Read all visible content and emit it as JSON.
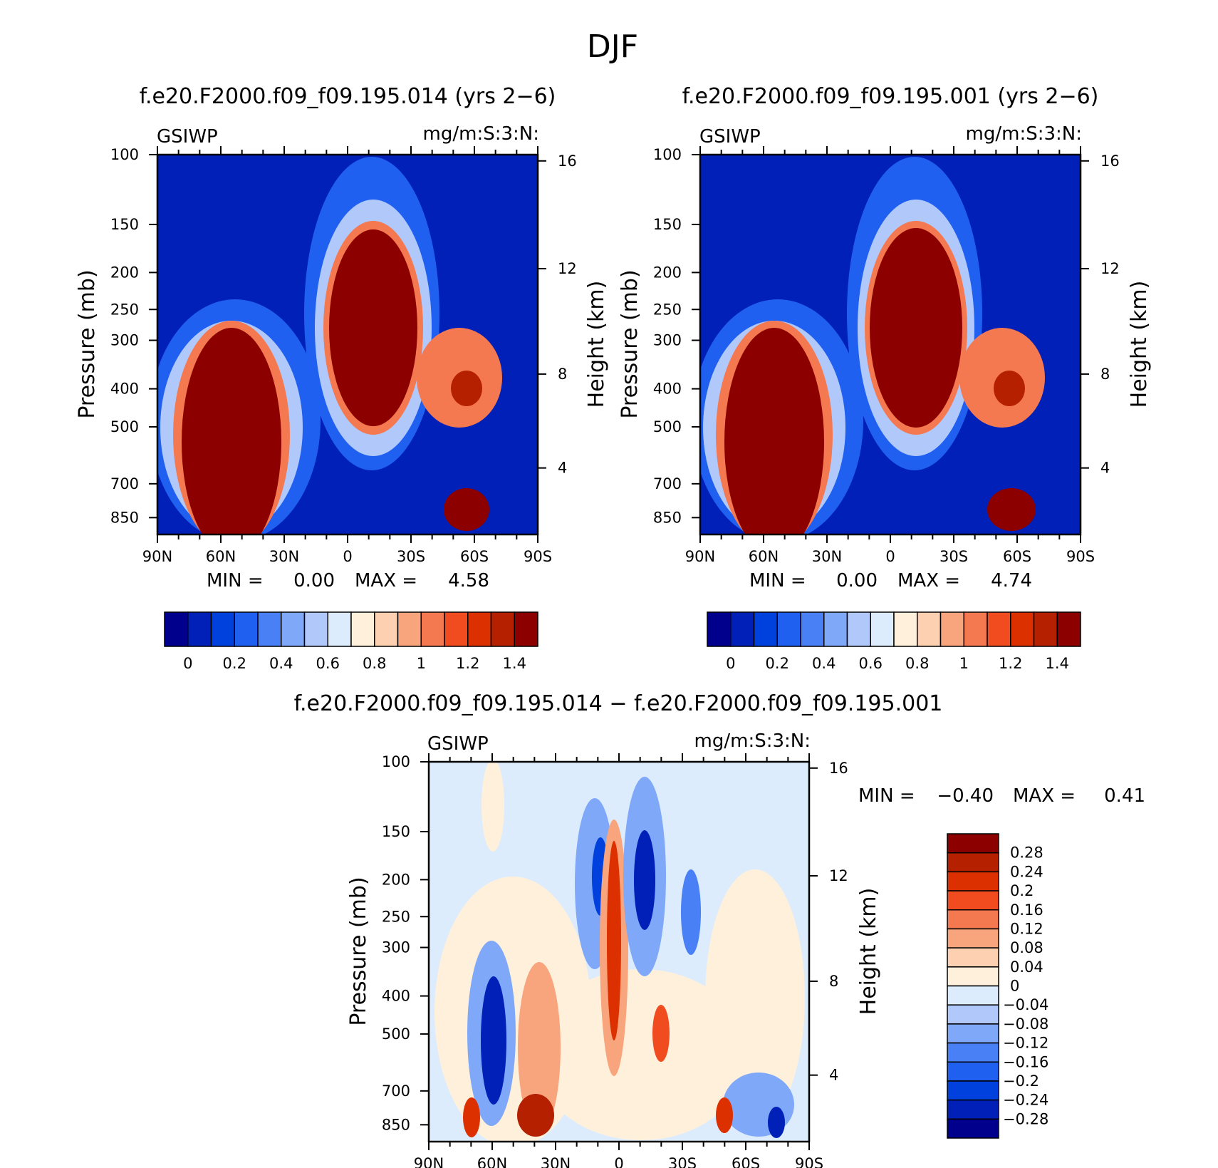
{
  "figure": {
    "title": "DJF"
  },
  "chart_data": [
    {
      "type": "heatmap",
      "id": "panel-left",
      "title": "f.e20.F2000.f09_f09.195.014 (yrs 2−6)",
      "left_string": "GSIWP",
      "right_string": "mg/m:S:3:N:",
      "xlabel": "",
      "ylabel": "Pressure (mb)",
      "y2label": "Height (km)",
      "x_ticks": [
        "90N",
        "60N",
        "30N",
        "0",
        "30S",
        "60S",
        "90S"
      ],
      "y_ticks": [
        "100",
        "150",
        "200",
        "250",
        "300",
        "400",
        "500",
        "700",
        "850"
      ],
      "y2_ticks": [
        "16",
        "12",
        "8",
        "4"
      ],
      "min_label": "MIN =",
      "min_value": "0.00",
      "max_label": "MAX =",
      "max_value": "4.58",
      "colorbar_labels": [
        "0",
        "0.2",
        "0.4",
        "0.6",
        "0.8",
        "1",
        "1.2",
        "1.4"
      ],
      "colors": [
        "#00008c",
        "#0020b8",
        "#0040dc",
        "#2060f0",
        "#4a80f5",
        "#80a8f8",
        "#b0c8fa",
        "#dcecfc",
        "#fff0dc",
        "#fcd0b0",
        "#f8a47c",
        "#f47850",
        "#f04c20",
        "#dc3000",
        "#b42000",
        "#8c0000"
      ]
    },
    {
      "type": "heatmap",
      "id": "panel-right",
      "title": "f.e20.F2000.f09_f09.195.001 (yrs 2−6)",
      "left_string": "GSIWP",
      "right_string": "mg/m:S:3:N:",
      "xlabel": "",
      "ylabel": "Pressure (mb)",
      "y2label": "Height (km)",
      "x_ticks": [
        "90N",
        "60N",
        "30N",
        "0",
        "30S",
        "60S",
        "90S"
      ],
      "y_ticks": [
        "100",
        "150",
        "200",
        "250",
        "300",
        "400",
        "500",
        "700",
        "850"
      ],
      "y2_ticks": [
        "16",
        "12",
        "8",
        "4"
      ],
      "min_label": "MIN =",
      "min_value": "0.00",
      "max_label": "MAX =",
      "max_value": "4.74",
      "colorbar_labels": [
        "0",
        "0.2",
        "0.4",
        "0.6",
        "0.8",
        "1",
        "1.2",
        "1.4"
      ],
      "colors": [
        "#00008c",
        "#0020b8",
        "#0040dc",
        "#2060f0",
        "#4a80f5",
        "#80a8f8",
        "#b0c8fa",
        "#dcecfc",
        "#fff0dc",
        "#fcd0b0",
        "#f8a47c",
        "#f47850",
        "#f04c20",
        "#dc3000",
        "#b42000",
        "#8c0000"
      ]
    },
    {
      "type": "heatmap",
      "id": "panel-diff",
      "title": "f.e20.F2000.f09_f09.195.014 − f.e20.F2000.f09_f09.195.001",
      "left_string": "GSIWP",
      "right_string": "mg/m:S:3:N:",
      "xlabel": "",
      "ylabel": "Pressure (mb)",
      "y2label": "Height (km)",
      "x_ticks": [
        "90N",
        "60N",
        "30N",
        "0",
        "30S",
        "60S",
        "90S"
      ],
      "y_ticks": [
        "100",
        "150",
        "200",
        "250",
        "300",
        "400",
        "500",
        "700",
        "850"
      ],
      "y2_ticks": [
        "16",
        "12",
        "8",
        "4"
      ],
      "min_label": "MIN =",
      "min_value": "−0.40",
      "max_label": "MAX =",
      "max_value": "0.41",
      "colorbar_labels": [
        "0.28",
        "0.24",
        "0.2",
        "0.16",
        "0.12",
        "0.08",
        "0.04",
        "0",
        "−0.04",
        "−0.08",
        "−0.12",
        "−0.16",
        "−0.2",
        "−0.24",
        "−0.28"
      ],
      "colors": [
        "#8c0000",
        "#b42000",
        "#dc3000",
        "#f04c20",
        "#f47850",
        "#f8a47c",
        "#fcd0b0",
        "#fff0dc",
        "#dcecfc",
        "#b0c8fa",
        "#80a8f8",
        "#4a80f5",
        "#2060f0",
        "#0040dc",
        "#0020b8",
        "#00008c"
      ]
    }
  ]
}
